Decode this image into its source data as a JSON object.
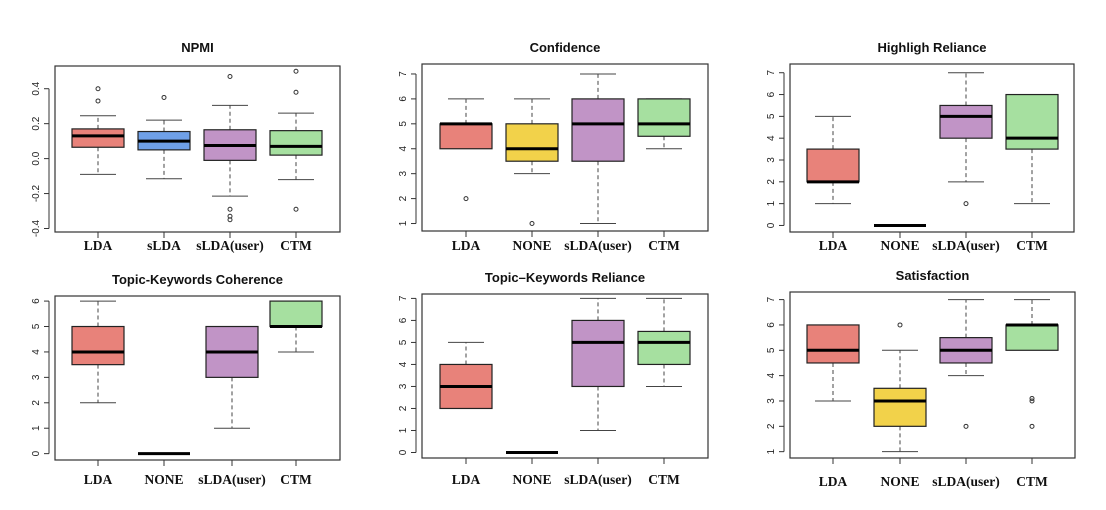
{
  "colors": {
    "LDA": "#e8827a",
    "sLDA": "#6fa0e8",
    "NONE": "#f2d24a",
    "sLDA(user)": "#c194c6",
    "CTM": "#a6e0a0"
  },
  "chart_data": [
    {
      "type": "box",
      "title": "NPMI",
      "categories": [
        "LDA",
        "sLDA",
        "sLDA(user)",
        "CTM"
      ],
      "yticks": [
        "0.4",
        "0.2",
        "0.0",
        "-0.2",
        "-0.4"
      ],
      "ytick_values": [
        0.4,
        0.2,
        0.0,
        -0.2,
        -0.4
      ],
      "ylim": [
        -0.42,
        0.53
      ],
      "boxes": [
        {
          "min": -0.09,
          "q1": 0.065,
          "median": 0.13,
          "q3": 0.17,
          "max": 0.245,
          "outliers": [
            0.4,
            0.33
          ]
        },
        {
          "min": -0.115,
          "q1": 0.05,
          "median": 0.1,
          "q3": 0.155,
          "max": 0.22,
          "outliers": [
            0.35
          ]
        },
        {
          "min": -0.215,
          "q1": -0.01,
          "median": 0.075,
          "q3": 0.165,
          "max": 0.305,
          "outliers": [
            0.47,
            -0.29,
            -0.33,
            -0.35
          ]
        },
        {
          "min": -0.12,
          "q1": 0.02,
          "median": 0.07,
          "q3": 0.16,
          "max": 0.26,
          "outliers": [
            0.5,
            0.38,
            -0.29
          ]
        }
      ]
    },
    {
      "type": "box",
      "title": "Confidence",
      "categories": [
        "LDA",
        "NONE",
        "sLDA(user)",
        "CTM"
      ],
      "yticks": [
        "7",
        "6",
        "5",
        "4",
        "3",
        "2",
        "1"
      ],
      "ytick_values": [
        7,
        6,
        5,
        4,
        3,
        2,
        1
      ],
      "ylim": [
        0.7,
        7.4
      ],
      "boxes": [
        {
          "min": 4,
          "q1": 4,
          "median": 5,
          "q3": 5,
          "max": 6,
          "outliers": [
            2
          ]
        },
        {
          "min": 3,
          "q1": 3.5,
          "median": 4,
          "q3": 5,
          "max": 6,
          "outliers": [
            1
          ]
        },
        {
          "min": 1,
          "q1": 3.5,
          "median": 5,
          "q3": 6,
          "max": 7,
          "outliers": []
        },
        {
          "min": 4,
          "q1": 4.5,
          "median": 5,
          "q3": 6,
          "max": 6,
          "outliers": []
        }
      ]
    },
    {
      "type": "box",
      "title": "Highligh Reliance",
      "categories": [
        "LDA",
        "NONE",
        "sLDA(user)",
        "CTM"
      ],
      "yticks": [
        "7",
        "6",
        "5",
        "4",
        "3",
        "2",
        "1",
        "0"
      ],
      "ytick_values": [
        7,
        6,
        5,
        4,
        3,
        2,
        1,
        0
      ],
      "ylim": [
        -0.3,
        7.4
      ],
      "boxes": [
        {
          "min": 1,
          "q1": 2,
          "median": 2,
          "q3": 3.5,
          "max": 5,
          "outliers": []
        },
        {
          "min": 0,
          "q1": 0,
          "median": 0,
          "q3": 0,
          "max": 0,
          "outliers": []
        },
        {
          "min": 2,
          "q1": 4,
          "median": 5,
          "q3": 5.5,
          "max": 7,
          "outliers": [
            1
          ]
        },
        {
          "min": 1,
          "q1": 3.5,
          "median": 4,
          "q3": 6,
          "max": 6,
          "outliers": []
        }
      ]
    },
    {
      "type": "box",
      "title": "Topic-Keywords Coherence",
      "categories": [
        "LDA",
        "NONE",
        "sLDA(user)",
        "CTM"
      ],
      "yticks": [
        "6",
        "5",
        "4",
        "3",
        "2",
        "1",
        "0"
      ],
      "ytick_values": [
        6,
        5,
        4,
        3,
        2,
        1,
        0
      ],
      "ylim": [
        -0.25,
        6.2
      ],
      "boxes": [
        {
          "min": 2,
          "q1": 3.5,
          "median": 4,
          "q3": 5,
          "max": 6,
          "outliers": []
        },
        {
          "min": 0,
          "q1": 0,
          "median": 0,
          "q3": 0,
          "max": 0,
          "outliers": []
        },
        {
          "min": 1,
          "q1": 3,
          "median": 4,
          "q3": 5,
          "max": 5,
          "outliers": []
        },
        {
          "min": 4,
          "q1": 5,
          "median": 5,
          "q3": 6,
          "max": 6,
          "outliers": []
        }
      ]
    },
    {
      "type": "box",
      "title": "Topic–Keywords Reliance",
      "categories": [
        "LDA",
        "NONE",
        "sLDA(user)",
        "CTM"
      ],
      "yticks": [
        "7",
        "6",
        "5",
        "4",
        "3",
        "2",
        "1",
        "0"
      ],
      "ytick_values": [
        7,
        6,
        5,
        4,
        3,
        2,
        1,
        0
      ],
      "ylim": [
        -0.25,
        7.2
      ],
      "boxes": [
        {
          "min": 2,
          "q1": 2,
          "median": 3,
          "q3": 4,
          "max": 5,
          "outliers": []
        },
        {
          "min": 0,
          "q1": 0,
          "median": 0,
          "q3": 0,
          "max": 0,
          "outliers": []
        },
        {
          "min": 1,
          "q1": 3,
          "median": 5,
          "q3": 6,
          "max": 7,
          "outliers": []
        },
        {
          "min": 3,
          "q1": 4,
          "median": 5,
          "q3": 5.5,
          "max": 7,
          "outliers": []
        }
      ]
    },
    {
      "type": "box",
      "title": "Satisfaction",
      "categories": [
        "LDA",
        "NONE",
        "sLDA(user)",
        "CTM"
      ],
      "yticks": [
        "7",
        "6",
        "5",
        "4",
        "3",
        "2",
        "1"
      ],
      "ytick_values": [
        7,
        6,
        5,
        4,
        3,
        2,
        1
      ],
      "ylim": [
        0.75,
        7.3
      ],
      "boxes": [
        {
          "min": 3,
          "q1": 4.5,
          "median": 5,
          "q3": 6,
          "max": 6,
          "outliers": []
        },
        {
          "min": 1,
          "q1": 2,
          "median": 3,
          "q3": 3.5,
          "max": 5,
          "outliers": [
            6
          ]
        },
        {
          "min": 4,
          "q1": 4.5,
          "median": 5,
          "q3": 5.5,
          "max": 7,
          "outliers": [
            2
          ]
        },
        {
          "min": 5,
          "q1": 5,
          "median": 6,
          "q3": 6,
          "max": 7,
          "outliers": [
            3,
            3.1,
            2
          ]
        }
      ]
    }
  ]
}
